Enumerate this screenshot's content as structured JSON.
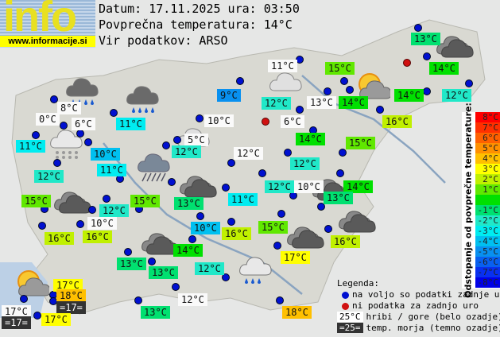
{
  "logo": {
    "text": "info",
    "url": "www.informacije.si"
  },
  "header": {
    "date_line": "Datum: 17.11.2025 ura: 03:50",
    "avg_line": "Povprečna temperatura: 14°C",
    "source_line": "Vir podatkov: ARSO"
  },
  "average_temp": 14,
  "stations": [
    {
      "temp": "8°C",
      "type": "mountain"
    },
    {
      "temp": "0°C",
      "type": "mountain"
    },
    {
      "temp": "6°C",
      "type": "mountain"
    },
    {
      "temp": "11°C",
      "type": "valley"
    },
    {
      "temp": "11°C",
      "type": "valley"
    },
    {
      "temp": "10°C",
      "type": "valley"
    },
    {
      "temp": "11°C",
      "type": "valley"
    },
    {
      "temp": "12°C",
      "type": "valley"
    },
    {
      "temp": "9°C",
      "type": "valley"
    },
    {
      "temp": "10°C",
      "type": "mountain"
    },
    {
      "temp": "5°C",
      "type": "mountain"
    },
    {
      "temp": "12°C",
      "type": "valley"
    },
    {
      "temp": "12°C",
      "type": "mountain"
    },
    {
      "temp": "11°C",
      "type": "mountain"
    },
    {
      "temp": "15°C",
      "type": "valley"
    },
    {
      "temp": "13°C",
      "type": "valley"
    },
    {
      "temp": "14°C",
      "type": "valley"
    },
    {
      "temp": "12°C",
      "type": "valley"
    },
    {
      "temp": "13°C",
      "type": "mountain"
    },
    {
      "temp": "14°C",
      "type": "valley"
    },
    {
      "temp": "14°C",
      "type": "valley"
    },
    {
      "temp": "12°C",
      "type": "valley"
    },
    {
      "temp": "6°C",
      "type": "mountain"
    },
    {
      "temp": "16°C",
      "type": "valley"
    },
    {
      "temp": "14°C",
      "type": "valley"
    },
    {
      "temp": "15°C",
      "type": "valley"
    },
    {
      "temp": "12°C",
      "type": "valley"
    },
    {
      "temp": "12°C",
      "type": "valley"
    },
    {
      "temp": "10°C",
      "type": "mountain"
    },
    {
      "temp": "14°C",
      "type": "valley"
    },
    {
      "temp": "11°C",
      "type": "valley"
    },
    {
      "temp": "13°C",
      "type": "valley"
    },
    {
      "temp": "15°C",
      "type": "valley"
    },
    {
      "temp": "12°C",
      "type": "valley"
    },
    {
      "temp": "15°C",
      "type": "valley"
    },
    {
      "temp": "13°C",
      "type": "valley"
    },
    {
      "temp": "10°C",
      "type": "mountain"
    },
    {
      "temp": "16°C",
      "type": "valley"
    },
    {
      "temp": "16°C",
      "type": "valley"
    },
    {
      "temp": "10°C",
      "type": "valley"
    },
    {
      "temp": "16°C",
      "type": "valley"
    },
    {
      "temp": "15°C",
      "type": "valley"
    },
    {
      "temp": "16°C",
      "type": "valley"
    },
    {
      "temp": "14°C",
      "type": "valley"
    },
    {
      "temp": "17°C",
      "type": "valley"
    },
    {
      "temp": "13°C",
      "type": "valley"
    },
    {
      "temp": "13°C",
      "type": "valley"
    },
    {
      "temp": "12°C",
      "type": "valley"
    },
    {
      "temp": "17°C",
      "type": "valley"
    },
    {
      "temp": "18°C",
      "type": "valley"
    },
    {
      "temp": "=17=",
      "type": "sea"
    },
    {
      "temp": "17°C",
      "type": "mountain"
    },
    {
      "temp": "=17=",
      "type": "sea"
    },
    {
      "temp": "17°C",
      "type": "valley"
    },
    {
      "temp": "12°C",
      "type": "mountain"
    },
    {
      "temp": "13°C",
      "type": "valley"
    },
    {
      "temp": "18°C",
      "type": "valley"
    }
  ],
  "weather_icons": [
    "rain",
    "rain",
    "heavy-rain",
    "snow",
    "cloudy",
    "cloudy",
    "overcast",
    "partly-cloudy",
    "overcast",
    "overcast",
    "overcast",
    "overcast",
    "overcast",
    "overcast",
    "light-rain",
    "partly-sunny",
    "partly-sunny"
  ],
  "scale": {
    "title": "Odstopanje od povprečne temperature:",
    "items": [
      {
        "label": "8°C",
        "color": "#ff0000"
      },
      {
        "label": "7°C",
        "color": "#ff3000"
      },
      {
        "label": "6°C",
        "color": "#ff6000"
      },
      {
        "label": "5°C",
        "color": "#ff9000"
      },
      {
        "label": "4°C",
        "color": "#ffc000"
      },
      {
        "label": "3°C",
        "color": "#ffff00"
      },
      {
        "label": "2°C",
        "color": "#c0f000"
      },
      {
        "label": "1°C",
        "color": "#60e800"
      },
      {
        "label": "",
        "color": "#00e000"
      },
      {
        "label": "-1°C",
        "color": "#00e070"
      },
      {
        "label": "-2°C",
        "color": "#20e8c8"
      },
      {
        "label": "-3°C",
        "color": "#00ecf0"
      },
      {
        "label": "-4°C",
        "color": "#00c0f0"
      },
      {
        "label": "-5°C",
        "color": "#0890f0"
      },
      {
        "label": "-6°C",
        "color": "#0860f0"
      },
      {
        "label": "-7°C",
        "color": "#0830f0"
      },
      {
        "label": "-8°C",
        "color": "#0000e8"
      }
    ]
  },
  "legend": {
    "title": "Legenda:",
    "available": "na voljo so podatki zadnje ure",
    "missing": "ni podatka za zadnjo uro",
    "mountain_sample": "25°C",
    "mountain_text": "hribi / gore (belo ozadje)",
    "sea_sample": "=25=",
    "sea_text": "temp. morja (temno ozadje)",
    "colors": {
      "available": "#0010d0",
      "missing": "#d01010",
      "mountain_bg": "#ffffff",
      "sea_bg": "#333333"
    }
  }
}
